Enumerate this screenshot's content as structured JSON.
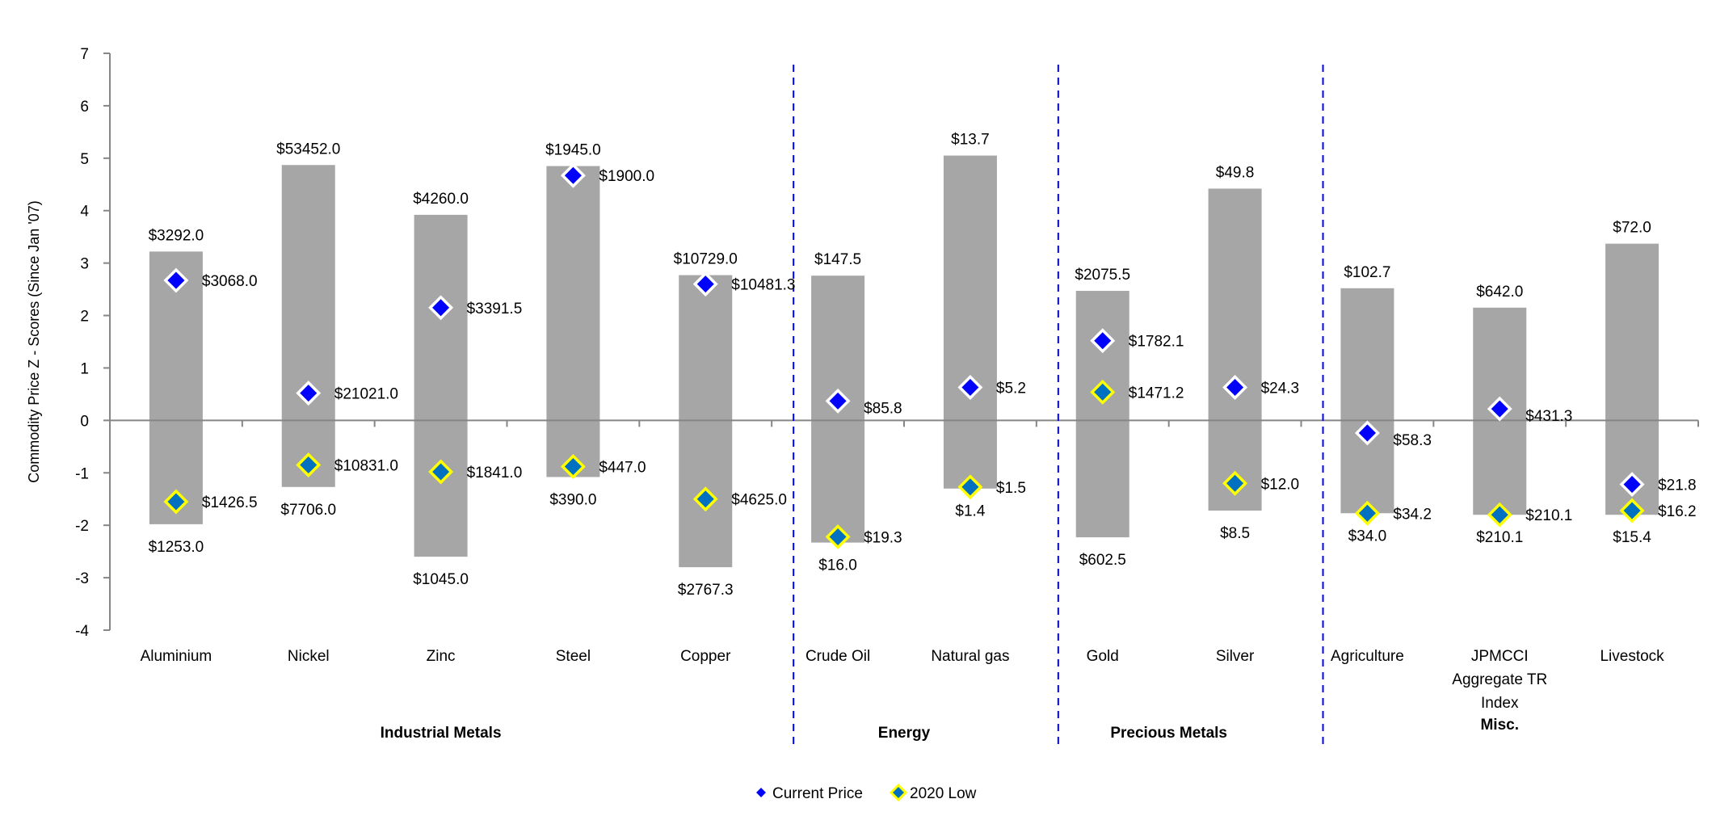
{
  "chart_data": {
    "type": "scatter",
    "subtype": "floating-range-bars-with-markers",
    "ylabel": "Commodity  Price Z - Scores (Since Jan '07)",
    "xlabel": "",
    "ylim": [
      -4,
      7
    ],
    "yticks": [
      "7",
      "6",
      "5",
      "4",
      "3",
      "2",
      "1",
      "0",
      "-1",
      "-2",
      "-3",
      "-4"
    ],
    "grid": false,
    "legend_position": "bottom",
    "legend": [
      {
        "name": "Current Price",
        "color": "#0000ff",
        "border": "#ffffff"
      },
      {
        "name": "2020 Low",
        "color": "#0070c0",
        "border": "#ffff00"
      }
    ],
    "range_color": "#a6a6a6",
    "divider_color": "#0000ff",
    "categories": [
      {
        "name": [
          "Aluminium"
        ],
        "group": 0,
        "range": [
          -1.98,
          3.22
        ],
        "current": 2.67,
        "low": -1.55,
        "labels": {
          "top": "$3292.0",
          "bottom": "$1253.0",
          "current": "$3068.0",
          "low": "$1426.5"
        }
      },
      {
        "name": [
          "Nickel"
        ],
        "group": 0,
        "range": [
          -1.27,
          4.87
        ],
        "current": 0.52,
        "low": -0.85,
        "labels": {
          "top": "$53452.0",
          "bottom": "$7706.0",
          "current": "$21021.0",
          "low": "$10831.0"
        }
      },
      {
        "name": [
          "Zinc"
        ],
        "group": 0,
        "range": [
          -2.6,
          3.92
        ],
        "current": 2.15,
        "low": -0.98,
        "labels": {
          "top": "$4260.0",
          "bottom": "$1045.0",
          "current": "$3391.5",
          "low": "$1841.0"
        }
      },
      {
        "name": [
          "Steel"
        ],
        "group": 0,
        "range": [
          -1.08,
          4.85
        ],
        "current": 4.67,
        "low": -0.88,
        "labels": {
          "top": "$1945.0",
          "bottom": "$390.0",
          "current": "$1900.0",
          "low": "$447.0"
        }
      },
      {
        "name": [
          "Copper"
        ],
        "group": 0,
        "range": [
          -2.8,
          2.77
        ],
        "current": 2.6,
        "low": -1.5,
        "labels": {
          "top": "$10729.0",
          "bottom": "$2767.3",
          "current": "$10481.3",
          "low": "$4625.0"
        }
      },
      {
        "name": [
          "Crude Oil"
        ],
        "group": 1,
        "range": [
          -2.33,
          2.76
        ],
        "current": 0.37,
        "low": -2.22,
        "labels": {
          "top": "$147.5",
          "bottom": "$16.0",
          "current": "$85.8",
          "low": "$19.3"
        }
      },
      {
        "name": [
          "Natural gas"
        ],
        "group": 1,
        "range": [
          -1.3,
          5.05
        ],
        "current": 0.63,
        "low": -1.27,
        "labels": {
          "top": "$13.7",
          "bottom": "$1.4",
          "current": "$5.2",
          "low": "$1.5"
        }
      },
      {
        "name": [
          "Gold"
        ],
        "group": 2,
        "range": [
          -2.23,
          2.47
        ],
        "current": 1.52,
        "low": 0.54,
        "labels": {
          "top": "$2075.5",
          "bottom": "$602.5",
          "current": "$1782.1",
          "low": "$1471.2"
        }
      },
      {
        "name": [
          "Silver"
        ],
        "group": 2,
        "range": [
          -1.72,
          4.42
        ],
        "current": 0.63,
        "low": -1.2,
        "labels": {
          "top": "$49.8",
          "bottom": "$8.5",
          "current": "$24.3",
          "low": "$12.0"
        }
      },
      {
        "name": [
          "Agriculture"
        ],
        "group": 3,
        "range": [
          -1.77,
          2.52
        ],
        "current": -0.24,
        "low": -1.77,
        "labels": {
          "top": "$102.7",
          "bottom": "$34.0",
          "current": "$58.3",
          "low": "$34.2"
        }
      },
      {
        "name": [
          "JPMCCI",
          "Aggregate TR",
          "Index"
        ],
        "group": 3,
        "range": [
          -1.8,
          2.15
        ],
        "current": 0.22,
        "low": -1.8,
        "labels": {
          "top": "$642.0",
          "bottom": "$210.1",
          "current": "$431.3",
          "low": "$210.1"
        }
      },
      {
        "name": [
          "Livestock"
        ],
        "group": 3,
        "range": [
          -1.8,
          3.37
        ],
        "current": -1.22,
        "low": -1.72,
        "labels": {
          "top": "$72.0",
          "bottom": "$15.4",
          "current": "$21.8",
          "low": "$16.2"
        }
      }
    ],
    "groups": [
      "Industrial Metals",
      "Energy",
      "Precious Metals",
      "Misc."
    ]
  }
}
